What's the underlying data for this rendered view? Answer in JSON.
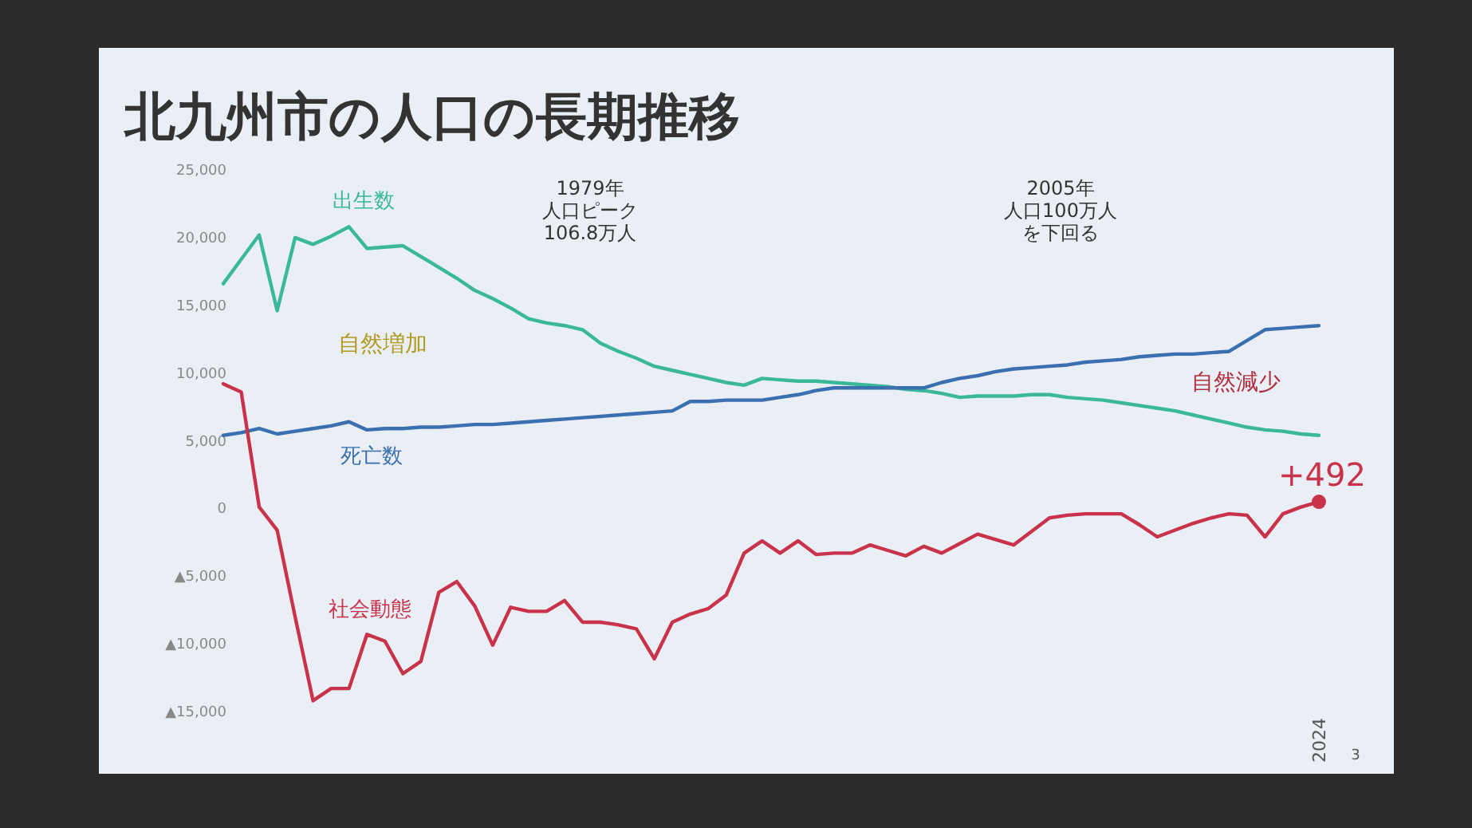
{
  "chart_data": {
    "type": "line",
    "title": "北九州市の人口の長期推移",
    "categories": [
      null,
      null,
      null,
      null,
      null,
      null,
      null,
      null,
      null,
      null,
      null,
      null,
      null,
      null,
      null,
      null,
      null,
      null,
      null,
      null,
      null,
      null,
      null,
      null,
      null,
      null,
      null,
      null,
      null,
      null,
      null,
      null,
      null,
      null,
      null,
      null,
      null,
      null,
      null,
      null,
      null,
      null,
      null,
      null,
      null,
      null,
      null,
      null,
      null,
      null,
      null,
      null,
      null,
      null,
      null,
      null,
      null,
      null,
      null,
      null,
      null,
      "2024"
    ],
    "ylim": [
      -15000,
      25000
    ],
    "yticks": [
      {
        "value": 25000,
        "label": "25,000"
      },
      {
        "value": 20000,
        "label": "20,000"
      },
      {
        "value": 15000,
        "label": "15,000"
      },
      {
        "value": 10000,
        "label": "10,000"
      },
      {
        "value": 5000,
        "label": "5,000"
      },
      {
        "value": 0,
        "label": "0"
      },
      {
        "value": -5000,
        "label": "▲5,000"
      },
      {
        "value": -10000,
        "label": "▲10,000"
      },
      {
        "value": -15000,
        "label": "▲15,000"
      }
    ],
    "series": [
      {
        "name": "出生数",
        "color": "#3bb89a",
        "values": [
          16600,
          18400,
          20200,
          14600,
          20000,
          19500,
          20100,
          20800,
          19200,
          19300,
          19400,
          18600,
          17800,
          17000,
          16100,
          15500,
          14800,
          14000,
          13700,
          13500,
          13200,
          12200,
          11600,
          11100,
          10500,
          10200,
          9900,
          9600,
          9300,
          9100,
          9600,
          9500,
          9400,
          9400,
          9300,
          9200,
          9100,
          9000,
          8800,
          8700,
          8500,
          8200,
          8300,
          8300,
          8300,
          8400,
          8400,
          8200,
          8100,
          8000,
          7800,
          7600,
          7400,
          7200,
          6900,
          6600,
          6300,
          6000,
          5800,
          5700,
          5500,
          5400
        ]
      },
      {
        "name": "死亡数",
        "color": "#3a6fb0",
        "values": [
          5400,
          5600,
          5900,
          5500,
          5700,
          5900,
          6100,
          6400,
          5800,
          5900,
          5900,
          6000,
          6000,
          6100,
          6200,
          6200,
          6300,
          6400,
          6500,
          6600,
          6700,
          6800,
          6900,
          7000,
          7100,
          7200,
          7900,
          7900,
          8000,
          8000,
          8000,
          8200,
          8400,
          8700,
          8900,
          8900,
          8900,
          8900,
          8900,
          8900,
          9300,
          9600,
          9800,
          10100,
          10300,
          10400,
          10500,
          10600,
          10800,
          10900,
          11000,
          11200,
          11300,
          11400,
          11400,
          11500,
          11600,
          12400,
          13200,
          13300,
          13400,
          13500
        ]
      },
      {
        "name": "社会動態",
        "color": "#c8324a",
        "values": [
          9200,
          8600,
          100,
          -1600,
          -8000,
          -14200,
          -13300,
          -13300,
          -9300,
          -9800,
          -12200,
          -11300,
          -6200,
          -5400,
          -7200,
          -10100,
          -7300,
          -7600,
          -7600,
          -6800,
          -8400,
          -8400,
          -8600,
          -8900,
          -11100,
          -8400,
          -7800,
          -7400,
          -6400,
          -3300,
          -2400,
          -3300,
          -2400,
          -3400,
          -3300,
          -3300,
          -2700,
          -3100,
          -3500,
          -2800,
          -3300,
          -2600,
          -1900,
          -2300,
          -2700,
          -1700,
          -700,
          -500,
          -400,
          -400,
          -400,
          -1200,
          -2100,
          -1600,
          -1100,
          -700,
          -400,
          -500,
          -2100,
          -400,
          100,
          492
        ],
        "value_labels": [
          null,
          null,
          null,
          null,
          null,
          null,
          null,
          null,
          null,
          null,
          null,
          null,
          null,
          null,
          null,
          null,
          null,
          null,
          null,
          null,
          null,
          null,
          null,
          null,
          null,
          null,
          null,
          null,
          null,
          null,
          null,
          null,
          null,
          null,
          null,
          null,
          null,
          null,
          null,
          null,
          null,
          null,
          null,
          null,
          null,
          null,
          null,
          null,
          null,
          null,
          null,
          null,
          null,
          null,
          null,
          null,
          null,
          null,
          null,
          null,
          null,
          "+492"
        ]
      }
    ],
    "annotations": [
      "1979年人口ピーク106.8万人",
      "2005年人口100万人を下回る",
      "自然増加",
      "自然減少",
      "3"
    ],
    "grid": false,
    "legend": false
  }
}
